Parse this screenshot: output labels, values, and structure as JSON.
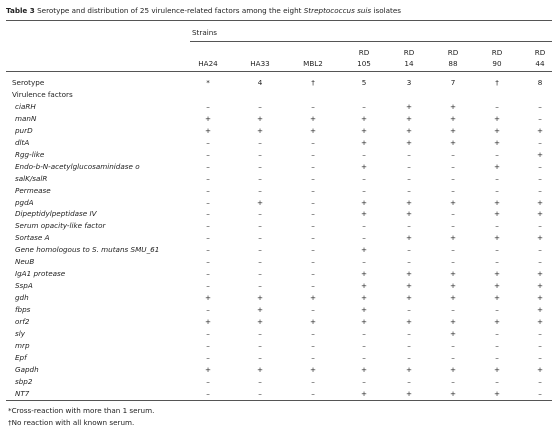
{
  "title": {
    "label": "Table 3",
    "text": "Serotype and distribution of 25 virulence-related factors among the eight ",
    "species": "Streptococcus suis",
    "text_end": " isolates"
  },
  "table": {
    "group_header": "Strains",
    "columns": [
      "HA24",
      "HA33",
      "MBL2",
      "RD 105",
      "RD 14",
      "RD 88",
      "RD 90",
      "RD 44"
    ],
    "serotype": {
      "label": "Serotype",
      "values": [
        "*",
        "4",
        "†",
        "5",
        "3",
        "7",
        "†",
        "8"
      ]
    },
    "section": "Virulence factors",
    "rows": [
      {
        "name": "ciaRH",
        "values": [
          "–",
          "–",
          "–",
          "–",
          "+",
          "+",
          "–",
          "–"
        ]
      },
      {
        "name": "manN",
        "values": [
          "+",
          "+",
          "+",
          "+",
          "+",
          "+",
          "+",
          "–"
        ]
      },
      {
        "name": "purD",
        "values": [
          "+",
          "+",
          "+",
          "+",
          "+",
          "+",
          "+",
          "+"
        ]
      },
      {
        "name": "dltA",
        "values": [
          "–",
          "–",
          "–",
          "+",
          "+",
          "+",
          "+",
          "–"
        ]
      },
      {
        "name": "Rgg-like",
        "values": [
          "–",
          "–",
          "–",
          "–",
          "–",
          "–",
          "–",
          "+"
        ]
      },
      {
        "name": "Endo-b-N-acetylglucosaminidase o",
        "values": [
          "–",
          "–",
          "–",
          "+",
          "–",
          "–",
          "+",
          "–"
        ]
      },
      {
        "name": "salK/salR",
        "values": [
          "–",
          "–",
          "–",
          "–",
          "–",
          "–",
          "–",
          "–"
        ]
      },
      {
        "name": "Permease",
        "values": [
          "–",
          "–",
          "–",
          "–",
          "–",
          "–",
          "–",
          "–"
        ]
      },
      {
        "name": "pgdA",
        "values": [
          "–",
          "+",
          "–",
          "+",
          "+",
          "+",
          "+",
          "+"
        ]
      },
      {
        "name": "Dipeptidylpeptidase IV",
        "values": [
          "–",
          "–",
          "–",
          "+",
          "+",
          "–",
          "+",
          "+"
        ]
      },
      {
        "name": "Serum opacity-like factor",
        "values": [
          "–",
          "–",
          "–",
          "–",
          "–",
          "–",
          "–",
          "–"
        ]
      },
      {
        "name": "Sortase A",
        "values": [
          "–",
          "–",
          "–",
          "–",
          "+",
          "+",
          "+",
          "+"
        ]
      },
      {
        "name": "Gene homologous to S. mutans SMU_61",
        "values": [
          "–",
          "–",
          "–",
          "+",
          "–",
          "–",
          "–",
          "–"
        ]
      },
      {
        "name": "NeuB",
        "values": [
          "–",
          "–",
          "–",
          "–",
          "–",
          "–",
          "–",
          "–"
        ]
      },
      {
        "name": "IgA1 protease",
        "values": [
          "–",
          "–",
          "–",
          "+",
          "+",
          "+",
          "+",
          "+"
        ]
      },
      {
        "name": "SspA",
        "values": [
          "–",
          "–",
          "–",
          "+",
          "+",
          "+",
          "+",
          "+"
        ]
      },
      {
        "name": "gdh",
        "values": [
          "+",
          "+",
          "+",
          "+",
          "+",
          "+",
          "+",
          "+"
        ]
      },
      {
        "name": "fbps",
        "values": [
          "–",
          "+",
          "–",
          "+",
          "–",
          "–",
          "–",
          "+"
        ]
      },
      {
        "name": "orf2",
        "values": [
          "+",
          "+",
          "+",
          "+",
          "+",
          "+",
          "+",
          "+"
        ]
      },
      {
        "name": "sly",
        "values": [
          "–",
          "–",
          "–",
          "–",
          "–",
          "+",
          "–",
          "–"
        ]
      },
      {
        "name": "mrp",
        "values": [
          "–",
          "–",
          "–",
          "–",
          "–",
          "–",
          "–",
          "–"
        ]
      },
      {
        "name": "Epf",
        "values": [
          "–",
          "–",
          "–",
          "–",
          "–",
          "–",
          "–",
          "–"
        ]
      },
      {
        "name": "Gapdh",
        "values": [
          "+",
          "+",
          "+",
          "+",
          "+",
          "+",
          "+",
          "+"
        ]
      },
      {
        "name": "sbp2",
        "values": [
          "–",
          "–",
          "–",
          "–",
          "–",
          "–",
          "–",
          "–"
        ]
      },
      {
        "name": "NT7",
        "values": [
          "–",
          "–",
          "–",
          "+",
          "+",
          "+",
          "+",
          "–"
        ]
      }
    ]
  },
  "footnotes": [
    "*Cross-reaction with more than 1 serum.",
    "†No reaction with all known serum."
  ]
}
